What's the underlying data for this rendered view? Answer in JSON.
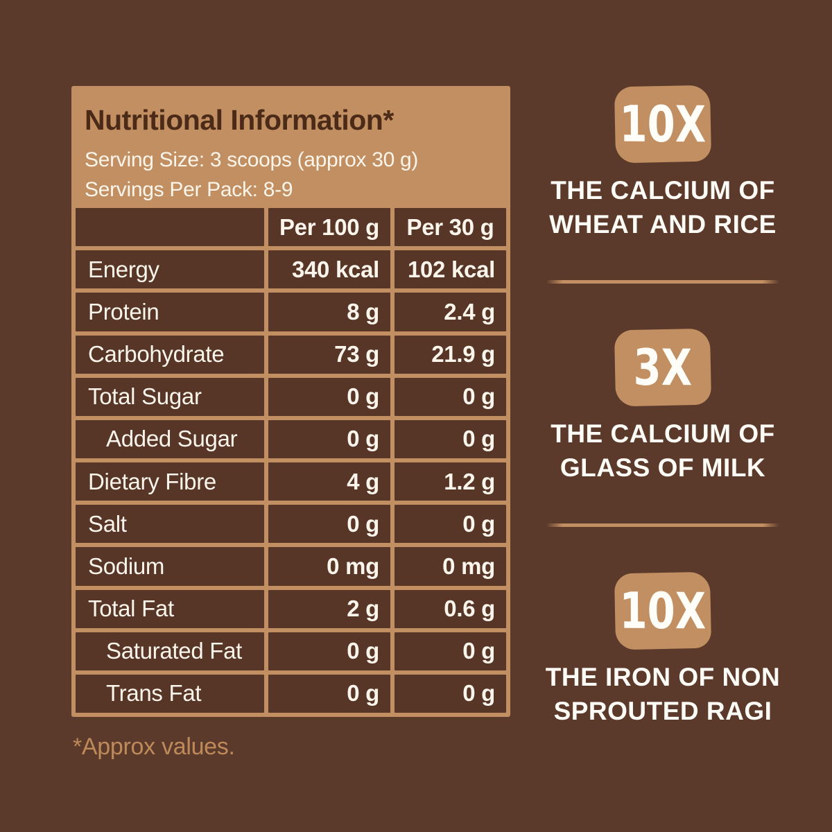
{
  "panel": {
    "title": "Nutritional Information*",
    "serving_size": "Serving Size: 3 scoops (approx 30 g)",
    "servings_per_pack": "Servings Per Pack: 8-9",
    "columns": {
      "per100": "Per 100 g",
      "per30": "Per 30 g"
    },
    "rows": [
      {
        "label": "Energy",
        "per100": "340 kcal",
        "per30": "102 kcal",
        "indent": false
      },
      {
        "label": "Protein",
        "per100": "8 g",
        "per30": "2.4 g",
        "indent": false
      },
      {
        "label": "Carbohydrate",
        "per100": "73 g",
        "per30": "21.9 g",
        "indent": false
      },
      {
        "label": "Total Sugar",
        "per100": "0 g",
        "per30": "0 g",
        "indent": false
      },
      {
        "label": "Added Sugar",
        "per100": "0 g",
        "per30": "0 g",
        "indent": true
      },
      {
        "label": "Dietary Fibre",
        "per100": "4 g",
        "per30": "1.2 g",
        "indent": false
      },
      {
        "label": "Salt",
        "per100": "0 g",
        "per30": "0 g",
        "indent": false
      },
      {
        "label": "Sodium",
        "per100": "0 mg",
        "per30": "0 mg",
        "indent": false
      },
      {
        "label": "Total Fat",
        "per100": "2 g",
        "per30": "0.6 g",
        "indent": false
      },
      {
        "label": "Saturated Fat",
        "per100": "0 g",
        "per30": "0 g",
        "indent": true
      },
      {
        "label": "Trans Fat",
        "per100": "0 g",
        "per30": "0 g",
        "indent": true
      }
    ],
    "footnote": "*Approx values."
  },
  "callouts": [
    {
      "badge": "10X",
      "line1": "THE CALCIUM OF",
      "line2": "WHEAT AND RICE"
    },
    {
      "badge": "3X",
      "line1": "THE CALCIUM OF",
      "line2": "GLASS OF MILK"
    },
    {
      "badge": "10X",
      "line1": "THE IRON OF NON",
      "line2": "SPROUTED RAGI"
    }
  ],
  "colors": {
    "background": "#5C3A2B",
    "tan": "#C18F61",
    "cell": "#573527",
    "title_text": "#4B2B18",
    "light_text": "#FBF5EB",
    "footnote_text": "#BE8A5A"
  }
}
